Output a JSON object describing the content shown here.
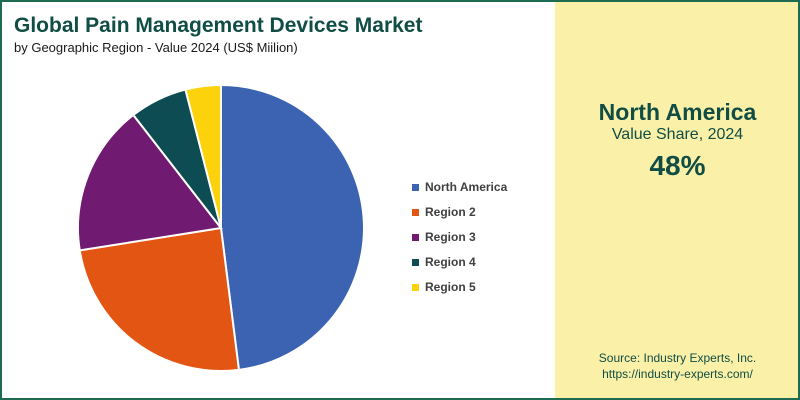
{
  "header": {
    "title": "Global Pain Management Devices Market",
    "subtitle": "by Geographic Region - Value 2024 (US$ Miilion)"
  },
  "panel": {
    "region": "North America",
    "metric": "Value Share, 2024",
    "value": "48%",
    "source_line1": "Source: Industry Experts, Inc.",
    "source_line2": "https://industry-experts.com/"
  },
  "colors": {
    "title": "#0f4d45",
    "border": "#1f6b52",
    "panel_bg": "#fbf0a7"
  },
  "chart_data": {
    "type": "pie",
    "title": "Global Pain Management Devices Market",
    "subtitle": "by Geographic Region - Value 2024 (US$ Miilion)",
    "legend_position": "right",
    "categories": [
      "North America",
      "Region 2",
      "Region 3",
      "Region 4",
      "Region 5"
    ],
    "values": [
      48,
      24.5,
      17,
      6.5,
      4
    ],
    "colors": [
      "#3b63b1",
      "#e35512",
      "#701a72",
      "#0c4c52",
      "#fcd20c"
    ],
    "legend": [
      "North America",
      "Region 2",
      "Region 3",
      "Region 4",
      "Region 5"
    ]
  }
}
